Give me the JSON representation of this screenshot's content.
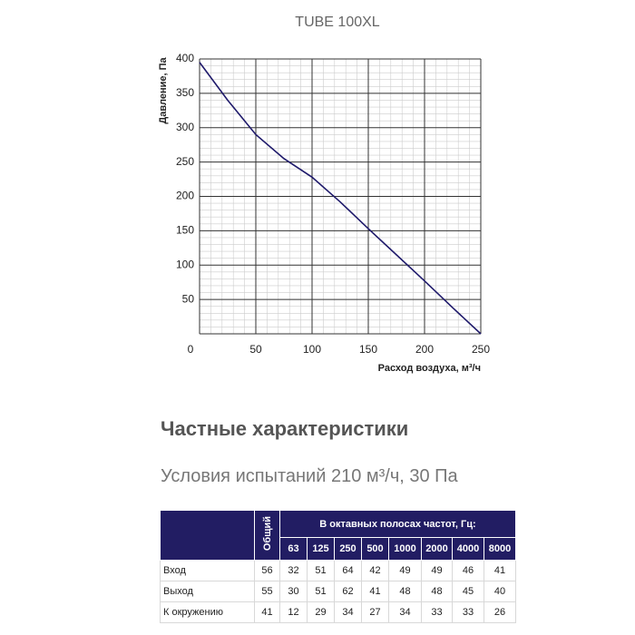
{
  "chart_data": {
    "type": "line",
    "title": "TUBE 100XL",
    "x_label": "Расход воздуха, м³/ч",
    "y_label": "Давление, Па",
    "x": [
      0,
      25,
      50,
      75,
      100,
      125,
      150,
      175,
      200,
      225,
      250
    ],
    "values": [
      395,
      340,
      290,
      255,
      228,
      192,
      153,
      115,
      77,
      38,
      0
    ],
    "color": "#1f1a6b",
    "xlim": [
      0,
      250
    ],
    "ylim": [
      0,
      400
    ],
    "xticks": [
      0,
      50,
      100,
      150,
      200,
      250
    ],
    "yticks": [
      50,
      100,
      150,
      200,
      250,
      300,
      350,
      400
    ],
    "grid": true,
    "minor_grid": true
  },
  "section_title": "Частные характеристики",
  "test_conditions": "Условия испытаний 210 м³/ч, 30 Па",
  "table": {
    "header": {
      "total": "Общий",
      "bands": "В октавных полосах частот, Гц:",
      "frequencies": [
        63,
        125,
        250,
        500,
        1000,
        2000,
        4000,
        8000
      ]
    },
    "rows": [
      [
        "Вход",
        56,
        32,
        51,
        64,
        42,
        49,
        49,
        46,
        41
      ],
      [
        "Выход",
        55,
        30,
        51,
        62,
        41,
        48,
        48,
        45,
        40
      ],
      [
        "К окружению",
        41,
        12,
        29,
        34,
        27,
        34,
        33,
        33,
        26
      ]
    ]
  }
}
